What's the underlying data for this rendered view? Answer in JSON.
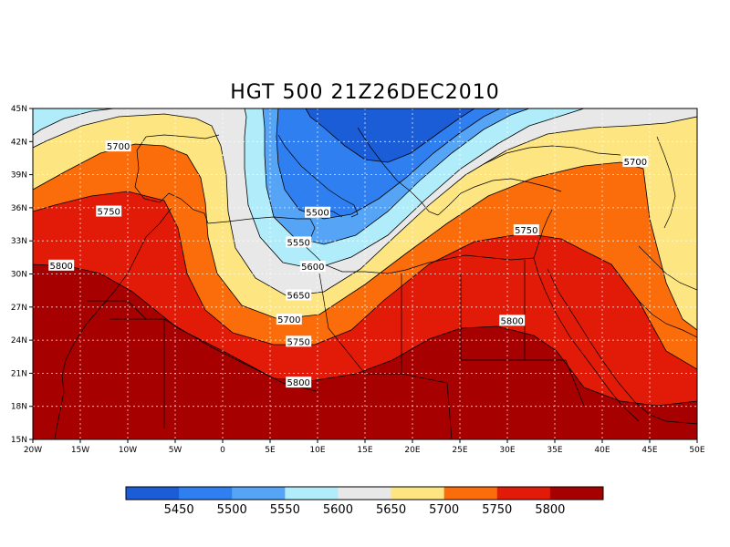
{
  "map": {
    "title": "HGT 500 21Z26DEC2010",
    "lon_ticks": [
      "20W",
      "15W",
      "10W",
      "5W",
      "0",
      "5E",
      "10E",
      "15E",
      "20E",
      "25E",
      "30E",
      "35E",
      "40E",
      "45E",
      "50E"
    ],
    "lat_ticks": [
      "45N",
      "42N",
      "39N",
      "36N",
      "33N",
      "30N",
      "27N",
      "24N",
      "21N",
      "18N",
      "15N"
    ],
    "contour_labels": [
      {
        "text": "5700",
        "lon": -11.0,
        "lat": 41.6
      },
      {
        "text": "5750",
        "lon": -12.0,
        "lat": 35.7
      },
      {
        "text": "5800",
        "lon": -17.0,
        "lat": 30.8
      },
      {
        "text": "5500",
        "lon": 10.0,
        "lat": 35.6
      },
      {
        "text": "5550",
        "lon": 8.0,
        "lat": 32.9
      },
      {
        "text": "5600",
        "lon": 9.5,
        "lat": 30.7
      },
      {
        "text": "5650",
        "lon": 8.0,
        "lat": 28.1
      },
      {
        "text": "5700",
        "lon": 7.0,
        "lat": 25.9
      },
      {
        "text": "5750",
        "lon": 8.0,
        "lat": 23.9
      },
      {
        "text": "5800",
        "lon": 8.0,
        "lat": 20.2
      },
      {
        "text": "5750",
        "lon": 32.0,
        "lat": 34.0
      },
      {
        "text": "5800",
        "lon": 30.5,
        "lat": 25.8
      },
      {
        "text": "5700",
        "lon": 43.5,
        "lat": 40.2
      }
    ]
  },
  "colorbar": {
    "colors": [
      "#1a5dd6",
      "#2f7ff0",
      "#55a4f6",
      "#b1ecfa",
      "#e8e8e8",
      "#fde581",
      "#fb6d0b",
      "#e21b09",
      "#a60000"
    ],
    "labels": [
      "5450",
      "5500",
      "5550",
      "5600",
      "5650",
      "5700",
      "5750",
      "5800"
    ]
  },
  "field_colors": {
    "c5800": "#a60000",
    "c5750": "#e21b09",
    "c5700": "#fb6d0b",
    "c5650": "#fde581",
    "c5600": "#e8e8e8",
    "c5550": "#b1ecfa",
    "c5500": "#55a4f6",
    "c5450": "#2f7ff0",
    "c5400": "#1a5dd6"
  }
}
